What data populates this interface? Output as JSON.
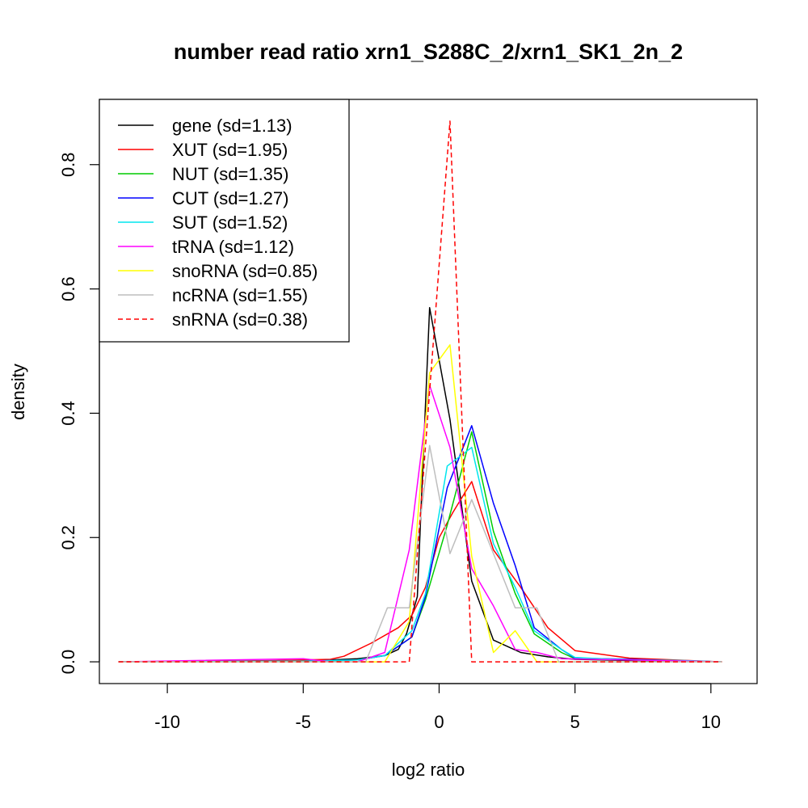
{
  "chart_data": {
    "type": "line",
    "title": "number read ratio xrn1_S288C_2/xrn1_SK1_2n_2",
    "xlabel": "log2 ratio",
    "ylabel": "density",
    "xlim": [
      -12.5,
      11.7
    ],
    "ylim": [
      -0.035,
      0.905
    ],
    "x_ticks": [
      -10,
      -5,
      0,
      5,
      10
    ],
    "y_ticks": [
      0.0,
      0.2,
      0.4,
      0.6,
      0.8
    ],
    "x_tick_labels": [
      "-10",
      "-5",
      "0",
      "5",
      "10"
    ],
    "y_tick_labels": [
      "0.0",
      "0.2",
      "0.4",
      "0.6",
      "0.8"
    ],
    "grid": false,
    "legend_position": "top-left",
    "series": [
      {
        "name": "gene (sd=1.13)",
        "color": "#000000",
        "dash": "solid",
        "x": [
          -11.8,
          -10,
          -8,
          -6,
          -5,
          -4,
          -3,
          -2,
          -1.5,
          -1.2,
          -0.8,
          -0.35,
          0.4,
          1.2,
          2.0,
          3.0,
          4.0,
          5.0,
          7.0,
          10.4
        ],
        "y": [
          0.0,
          0.0,
          0.0,
          0.001,
          0.002,
          0.003,
          0.005,
          0.01,
          0.02,
          0.045,
          0.105,
          0.57,
          0.39,
          0.13,
          0.035,
          0.015,
          0.008,
          0.004,
          0.002,
          0.0
        ]
      },
      {
        "name": "XUT (sd=1.95)",
        "color": "#ff0000",
        "dash": "solid",
        "x": [
          -11.8,
          -8,
          -6,
          -5,
          -4,
          -3.5,
          -2.5,
          -1.5,
          -1.0,
          -0.5,
          0.0,
          0.5,
          1.2,
          2.0,
          3.0,
          4.0,
          5.0,
          6.0,
          7.0,
          10.4
        ],
        "y": [
          0.0,
          0.001,
          0.002,
          0.003,
          0.004,
          0.009,
          0.03,
          0.055,
          0.075,
          0.12,
          0.2,
          0.24,
          0.29,
          0.18,
          0.12,
          0.055,
          0.018,
          0.012,
          0.006,
          0.0
        ]
      },
      {
        "name": "NUT (sd=1.35)",
        "color": "#00cc00",
        "dash": "solid",
        "x": [
          -11.8,
          -5,
          -3,
          -2,
          -1.0,
          -0.5,
          0.3,
          1.2,
          2.0,
          2.8,
          3.5,
          4.5,
          5.0,
          7.0,
          10.4
        ],
        "y": [
          0.0,
          0.0,
          0.003,
          0.01,
          0.04,
          0.1,
          0.22,
          0.37,
          0.21,
          0.11,
          0.045,
          0.015,
          0.005,
          0.003,
          0.0
        ]
      },
      {
        "name": "CUT (sd=1.27)",
        "color": "#0000ff",
        "dash": "solid",
        "x": [
          -11.8,
          -5,
          -3,
          -2,
          -1.0,
          -0.5,
          0.3,
          1.2,
          2.0,
          2.8,
          3.5,
          4.5,
          5.0,
          7.0,
          10.4
        ],
        "y": [
          0.0,
          0.001,
          0.003,
          0.01,
          0.04,
          0.105,
          0.28,
          0.38,
          0.255,
          0.155,
          0.055,
          0.02,
          0.006,
          0.004,
          0.0
        ]
      },
      {
        "name": "SUT (sd=1.52)",
        "color": "#00e5ee",
        "dash": "solid",
        "x": [
          -11.8,
          -5,
          -3,
          -2,
          -1.0,
          -0.5,
          0.3,
          1.2,
          2.0,
          2.8,
          3.5,
          4.5,
          5.0,
          7.0,
          9.0,
          10.4
        ],
        "y": [
          0.0,
          0.001,
          0.003,
          0.01,
          0.05,
          0.11,
          0.315,
          0.345,
          0.19,
          0.12,
          0.05,
          0.02,
          0.007,
          0.003,
          0.002,
          0.0
        ]
      },
      {
        "name": "tRNA (sd=1.12)",
        "color": "#ff00ff",
        "dash": "solid",
        "x": [
          -11.8,
          -5,
          -4,
          -3,
          -2,
          -1.1,
          -0.35,
          0.4,
          1.2,
          2.0,
          2.8,
          3.6,
          4.5,
          10.4
        ],
        "y": [
          0.0,
          0.005,
          0.0,
          0.0,
          0.015,
          0.18,
          0.445,
          0.345,
          0.15,
          0.09,
          0.02,
          0.015,
          0.005,
          0.0
        ]
      },
      {
        "name": "snoRNA (sd=0.85)",
        "color": "#ffff00",
        "dash": "solid",
        "x": [
          -11.8,
          -2,
          -1.1,
          -0.35,
          0.4,
          1.2,
          2.0,
          2.8,
          3.6,
          4.4,
          10.4
        ],
        "y": [
          0.0,
          0.0,
          0.065,
          0.465,
          0.51,
          0.17,
          0.015,
          0.05,
          0.0,
          0.0,
          0.0
        ]
      },
      {
        "name": "ncRNA (sd=1.55)",
        "color": "#bebebe",
        "dash": "solid",
        "x": [
          -11.8,
          -2.7,
          -1.9,
          -1.1,
          -0.35,
          0.4,
          1.2,
          2.0,
          2.8,
          3.6,
          4.4,
          10.4
        ],
        "y": [
          0.0,
          0.0,
          0.087,
          0.087,
          0.348,
          0.174,
          0.261,
          0.174,
          0.087,
          0.087,
          0.0,
          0.0
        ]
      },
      {
        "name": "snRNA (sd=0.38)",
        "color": "#ff0000",
        "dash": "dashed",
        "x": [
          -11.8,
          -1.1,
          -0.35,
          0.4,
          1.2,
          10.4
        ],
        "y": [
          0.0,
          0.0,
          0.435,
          0.87,
          0.0,
          0.0
        ]
      }
    ]
  }
}
